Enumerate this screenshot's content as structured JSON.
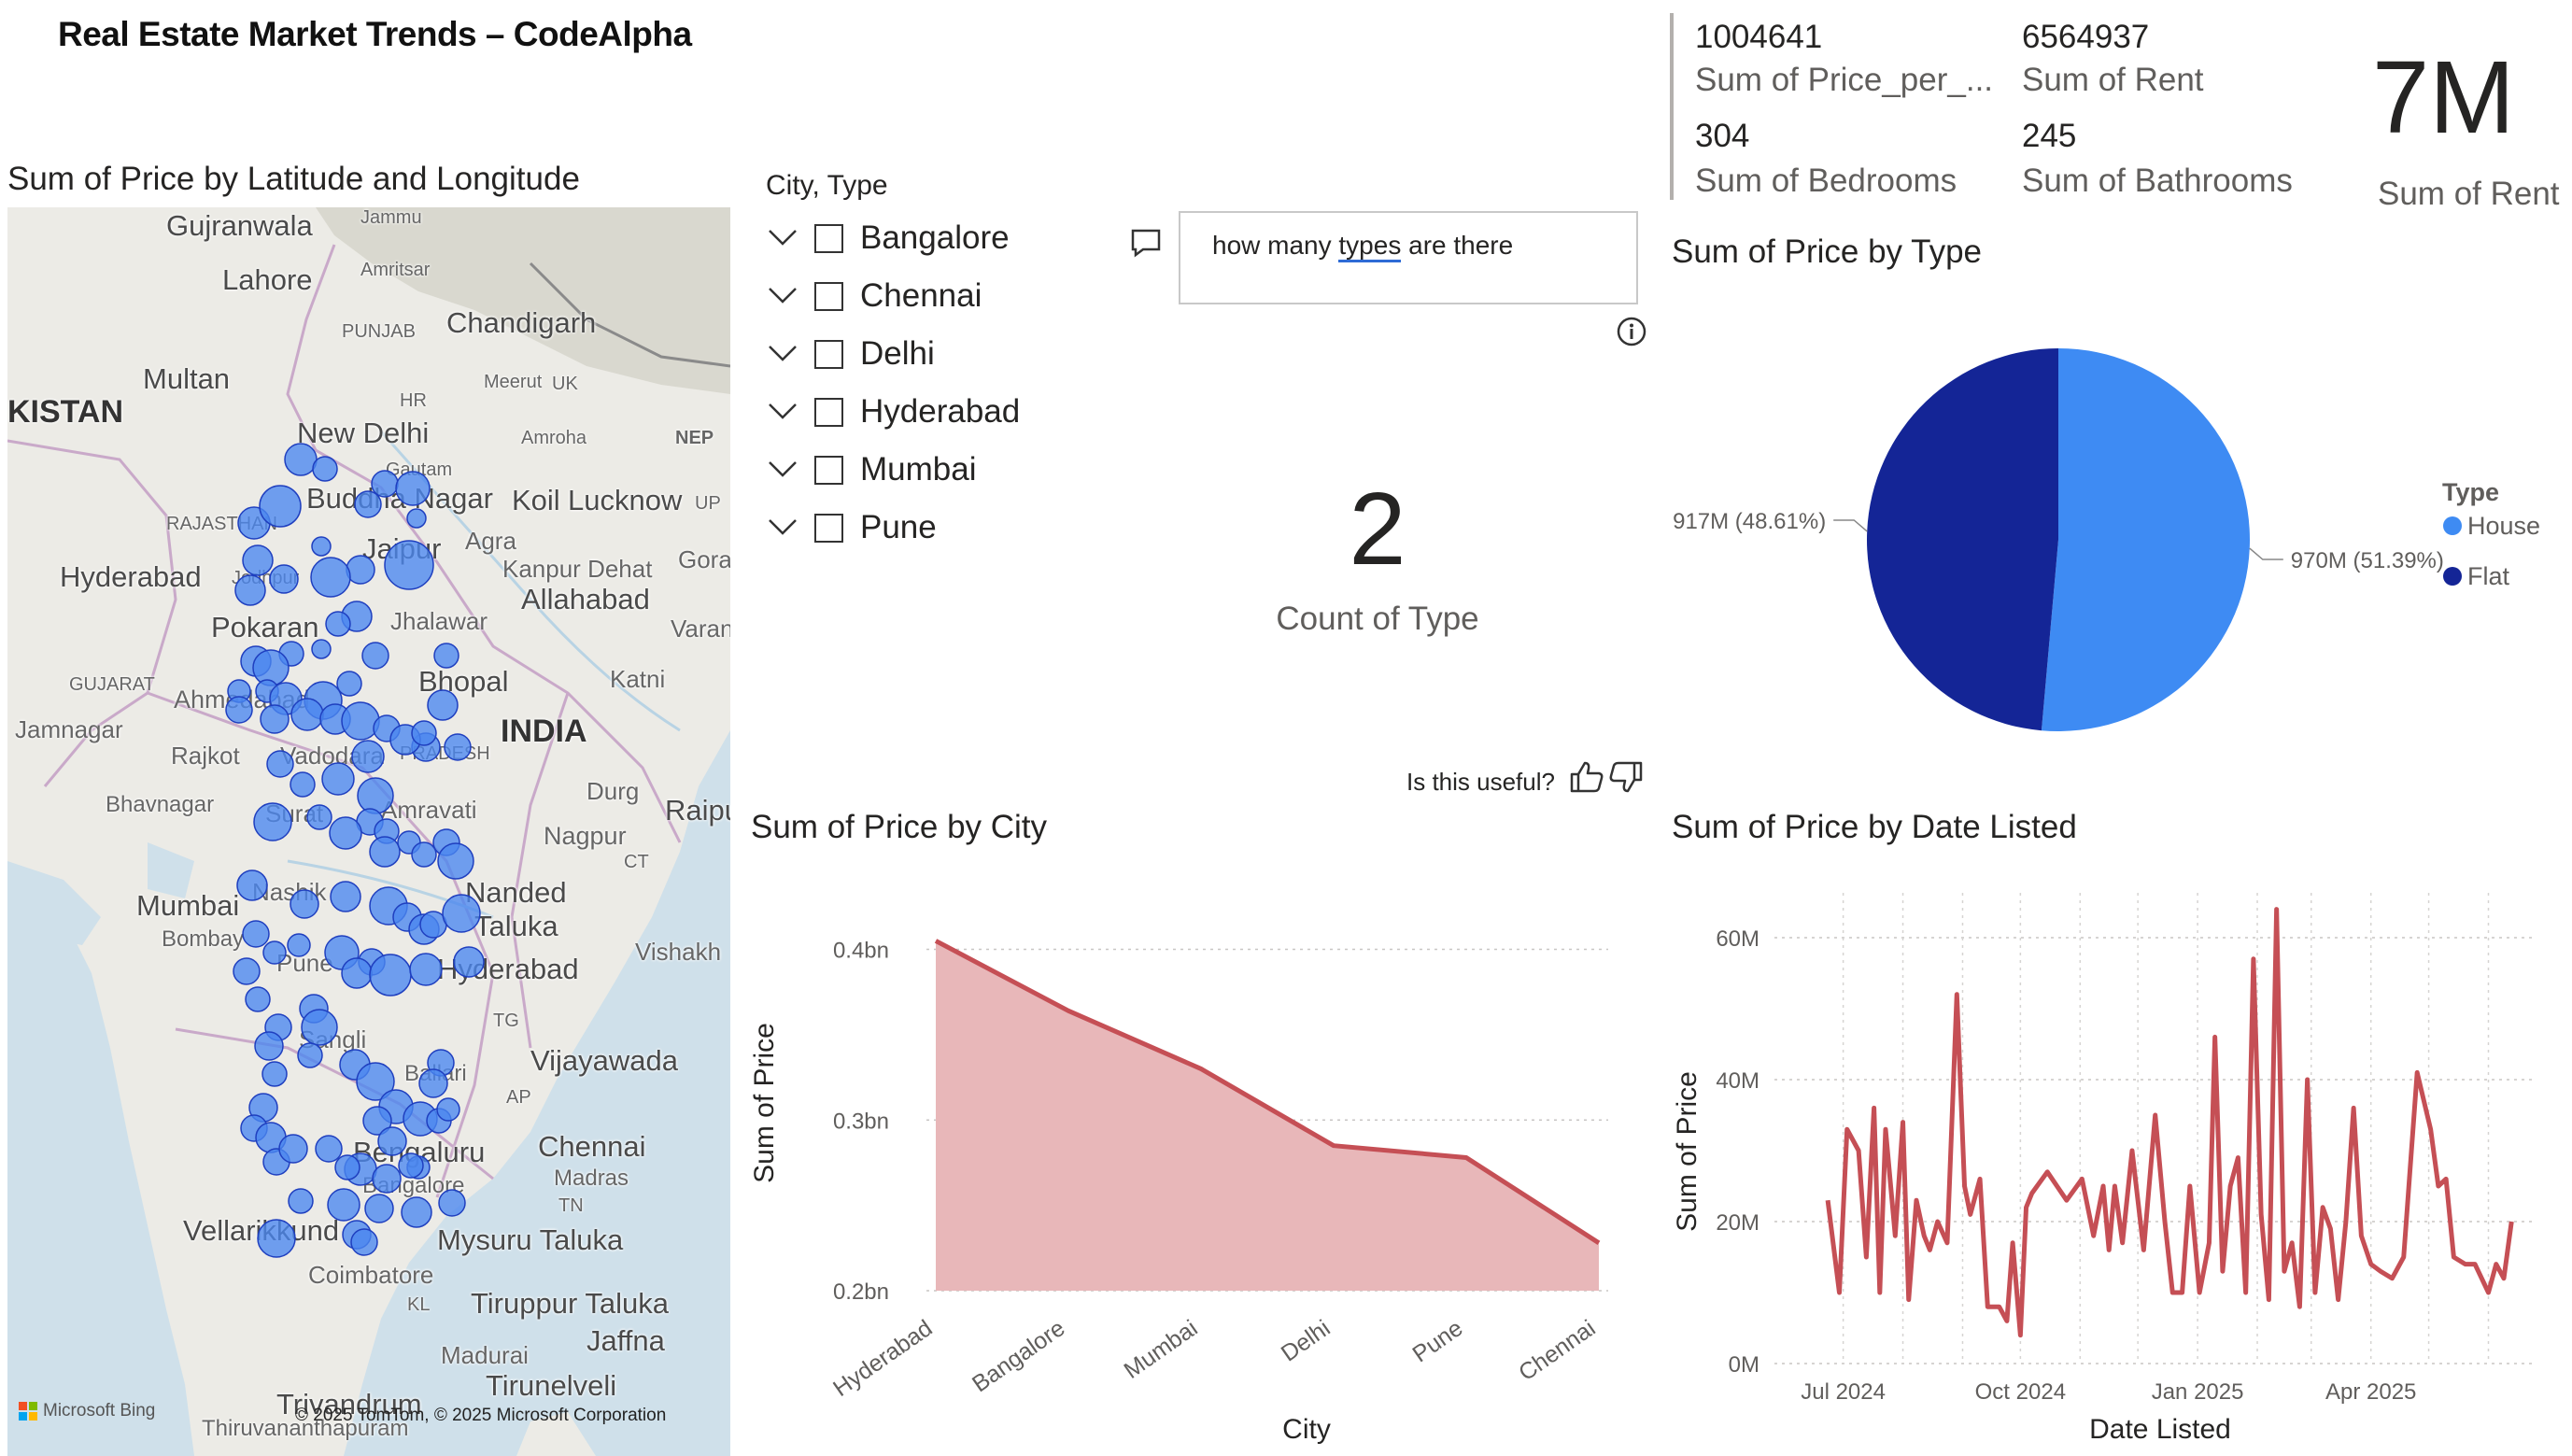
{
  "report_title": "Real Estate Market Trends – CodeAlpha",
  "map": {
    "title": "Sum of Price by Latitude and Longitude",
    "copyright": "© 2025 TomTom, © 2025 Microsoft Corporation",
    "logo_text": "Microsoft Bing",
    "place_labels": [
      "Gujranwala",
      "Jammu",
      "Lahore",
      "Amritsar",
      "Chandigarh",
      "PUNJAB",
      "Multan",
      "HR",
      "Meerut",
      "UK",
      "KISTAN",
      "New Delhi",
      "Amroha",
      "NEP",
      "Gautam",
      "Buddha Nagar",
      "Koil",
      "Lucknow",
      "UP",
      "RAJASTHAN",
      "Agra",
      "Jaipur",
      "Hyderabad",
      "Jodhpur",
      "Kanpur Dehat",
      "Gora",
      "Allahabad",
      "Pokaran",
      "Jhalawar",
      "Varan",
      "GUJARAT",
      "Bhopal",
      "Katni",
      "Ahmedabad",
      "Jamnagar",
      "INDIA",
      "Rajkot",
      "Vadodara",
      "PRADESH",
      "Durg",
      "Bhavnagar",
      "Surat",
      "Amravati",
      "Raipu",
      "Nagpur",
      "CT",
      "Mumbai",
      "Bombay",
      "Nashik",
      "Nanded",
      "Taluka",
      "Pune",
      "Vishakh",
      "Hyderabad",
      "TG",
      "Sangli",
      "Vijayawada",
      "Ballari",
      "AP",
      "Bengaluru",
      "Chennai",
      "Bangalore",
      "Madras",
      "TN",
      "Vellarikkund",
      "Mysuru Taluka",
      "Coimbatore",
      "KL",
      "Tiruppur Taluka",
      "Madurai",
      "Jaffna",
      "Tirunelveli",
      "Trivandrum",
      "Thiruvananthapuram"
    ]
  },
  "slicer": {
    "title": "City, Type",
    "items": [
      "Bangalore",
      "Chennai",
      "Delhi",
      "Hyderabad",
      "Mumbai",
      "Pune"
    ]
  },
  "qa": {
    "query_part1": "how many ",
    "query_typo": "types",
    "query_part2": " are there",
    "answer_value": "2",
    "answer_label": "Count of Type",
    "useful_prompt": "Is this useful?"
  },
  "kpis": {
    "price_per_sqft": {
      "value": "1004641",
      "label": "Sum of Price_per_..."
    },
    "rent": {
      "value": "6564937",
      "label": "Sum of Rent"
    },
    "bedrooms": {
      "value": "304",
      "label": "Sum of Bedrooms"
    },
    "bathrooms": {
      "value": "245",
      "label": "Sum of Bathrooms"
    },
    "big_rent": {
      "value": "7M",
      "label": "Sum of Rent"
    }
  },
  "colors": {
    "bubble": "#4a86f0",
    "house": "#3e8bf3",
    "flat": "#142596",
    "area_line": "#c54f55",
    "area_fill": "#e8b7b9"
  },
  "chart_data": [
    {
      "type": "pie",
      "title": "Sum of Price by Type",
      "legend_title": "Type",
      "legend_position": "right",
      "slices": [
        {
          "name": "House",
          "value": 970,
          "label": "970M (51.39%)"
        },
        {
          "name": "Flat",
          "value": 917,
          "label": "917M (48.61%)"
        }
      ]
    },
    {
      "type": "area",
      "title": "Sum of Price by City",
      "xlabel": "City",
      "ylabel": "Sum of Price",
      "categories": [
        "Hyderabad",
        "Bangalore",
        "Mumbai",
        "Delhi",
        "Pune",
        "Chennai"
      ],
      "values": [
        0.405,
        0.364,
        0.33,
        0.285,
        0.278,
        0.228
      ],
      "ylim": [
        0.2,
        0.42
      ],
      "yticks": [
        "0.2bn",
        "0.3bn",
        "0.4bn"
      ],
      "grid": true
    },
    {
      "type": "line",
      "title": "Sum of Price by Date Listed",
      "xlabel": "Date Listed",
      "ylabel": "Sum of Price",
      "xticks": [
        "Jul 2024",
        "Oct 2024",
        "Jan 2025",
        "Apr 2025"
      ],
      "yticks": [
        "0M",
        "20M",
        "40M",
        "60M"
      ],
      "ylim": [
        0,
        65
      ],
      "grid": true,
      "x": [
        "2024-06-23",
        "2024-06-29",
        "2024-07-03",
        "2024-07-09",
        "2024-07-13",
        "2024-07-17",
        "2024-07-20",
        "2024-07-23",
        "2024-07-28",
        "2024-08-01",
        "2024-08-04",
        "2024-08-08",
        "2024-08-12",
        "2024-08-15",
        "2024-08-19",
        "2024-08-24",
        "2024-08-29",
        "2024-09-02",
        "2024-09-05",
        "2024-09-10",
        "2024-09-14",
        "2024-09-20",
        "2024-09-24",
        "2024-09-27",
        "2024-10-01",
        "2024-10-04",
        "2024-10-07",
        "2024-10-15",
        "2024-10-25",
        "2024-11-02",
        "2024-11-08",
        "2024-11-13",
        "2024-11-16",
        "2024-11-19",
        "2024-11-23",
        "2024-11-28",
        "2024-12-04",
        "2024-12-10",
        "2024-12-15",
        "2024-12-19",
        "2024-12-24",
        "2024-12-28",
        "2025-01-02",
        "2025-01-07",
        "2025-01-10",
        "2025-01-14",
        "2025-01-18",
        "2025-01-22",
        "2025-01-26",
        "2025-01-30",
        "2025-02-03",
        "2025-02-07",
        "2025-02-11",
        "2025-02-15",
        "2025-02-19",
        "2025-02-23",
        "2025-02-27",
        "2025-03-03",
        "2025-03-07",
        "2025-03-11",
        "2025-03-15",
        "2025-03-19",
        "2025-03-23",
        "2025-03-27",
        "2025-04-01",
        "2025-04-06",
        "2025-04-12",
        "2025-04-18",
        "2025-04-25",
        "2025-05-02",
        "2025-05-06",
        "2025-05-10",
        "2025-05-14",
        "2025-05-20",
        "2025-05-25",
        "2025-06-01",
        "2025-06-05",
        "2025-06-09",
        "2025-06-13"
      ],
      "values": [
        23,
        10,
        33,
        30,
        15,
        36,
        10,
        33,
        18,
        34,
        9,
        23,
        18,
        16,
        20,
        17,
        52,
        25,
        21,
        26,
        8,
        8,
        6,
        17,
        4,
        22,
        24,
        27,
        23,
        26,
        18,
        25,
        16,
        25,
        17,
        30,
        16,
        35,
        20,
        10,
        10,
        25,
        10,
        17,
        46,
        13,
        25,
        29,
        10,
        57,
        21,
        9,
        64,
        13,
        17,
        8,
        40,
        10,
        22,
        19,
        9,
        20,
        36,
        18,
        14,
        13,
        12,
        15,
        41,
        33,
        25,
        26,
        15,
        14,
        14,
        10,
        14,
        12,
        20
      ],
      "note": "values in millions, approximate reading"
    }
  ]
}
